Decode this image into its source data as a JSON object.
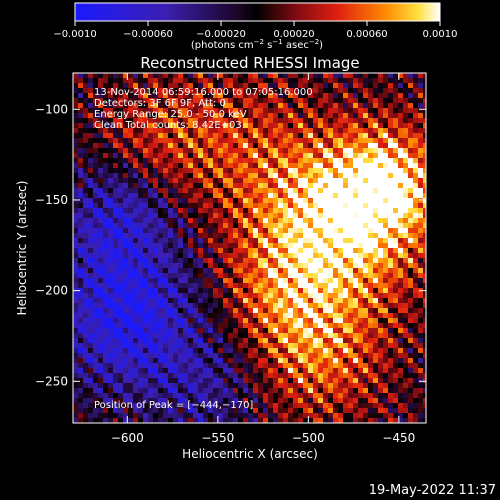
{
  "chart_data": {
    "type": "heatmap",
    "title": "Reconstructed RHESSI Image",
    "xlabel": "Heliocentric X (arcsec)",
    "ylabel": "Heliocentric Y (arcsec)",
    "xlim": [
      -630,
      -435
    ],
    "ylim": [
      -273,
      -80
    ],
    "x_ticks": [
      -600,
      -550,
      -500,
      -450
    ],
    "x_tick_labels": [
      "−600",
      "−550",
      "−500",
      "−450"
    ],
    "y_ticks": [
      -250,
      -200,
      -150,
      -100
    ],
    "y_tick_labels": [
      "−250",
      "−200",
      "−150",
      "−100"
    ],
    "colorbar": {
      "range": [
        -0.001,
        0.001
      ],
      "ticks": [
        -0.001,
        -0.0006,
        -0.0002,
        0.0002,
        0.0006,
        0.001
      ],
      "tick_labels": [
        "−0.0010",
        "−0.00060",
        "−0.00020",
        "0.00020",
        "0.00060",
        "0.0010"
      ],
      "unit_main": "(photons cm",
      "unit_sup1": "−2",
      "unit_mid1": " s",
      "unit_sup2": "−1",
      "unit_mid2": " asec",
      "unit_sup3": "−2",
      "unit_end": ")"
    },
    "annotations": [
      "13-Nov-2014 06:59:16.000 to 07:05:16.000",
      "Detectors: 3F 6F 9F, Att: 0",
      "Energy Range: 25.0 - 50.0 keV",
      "Clean    Total counts: 8.42E+03"
    ],
    "peak_label": "Position of Peak = [−444,−170]",
    "peak": [
      -444,
      -170
    ]
  },
  "footer": "19-May-2022 11:37"
}
